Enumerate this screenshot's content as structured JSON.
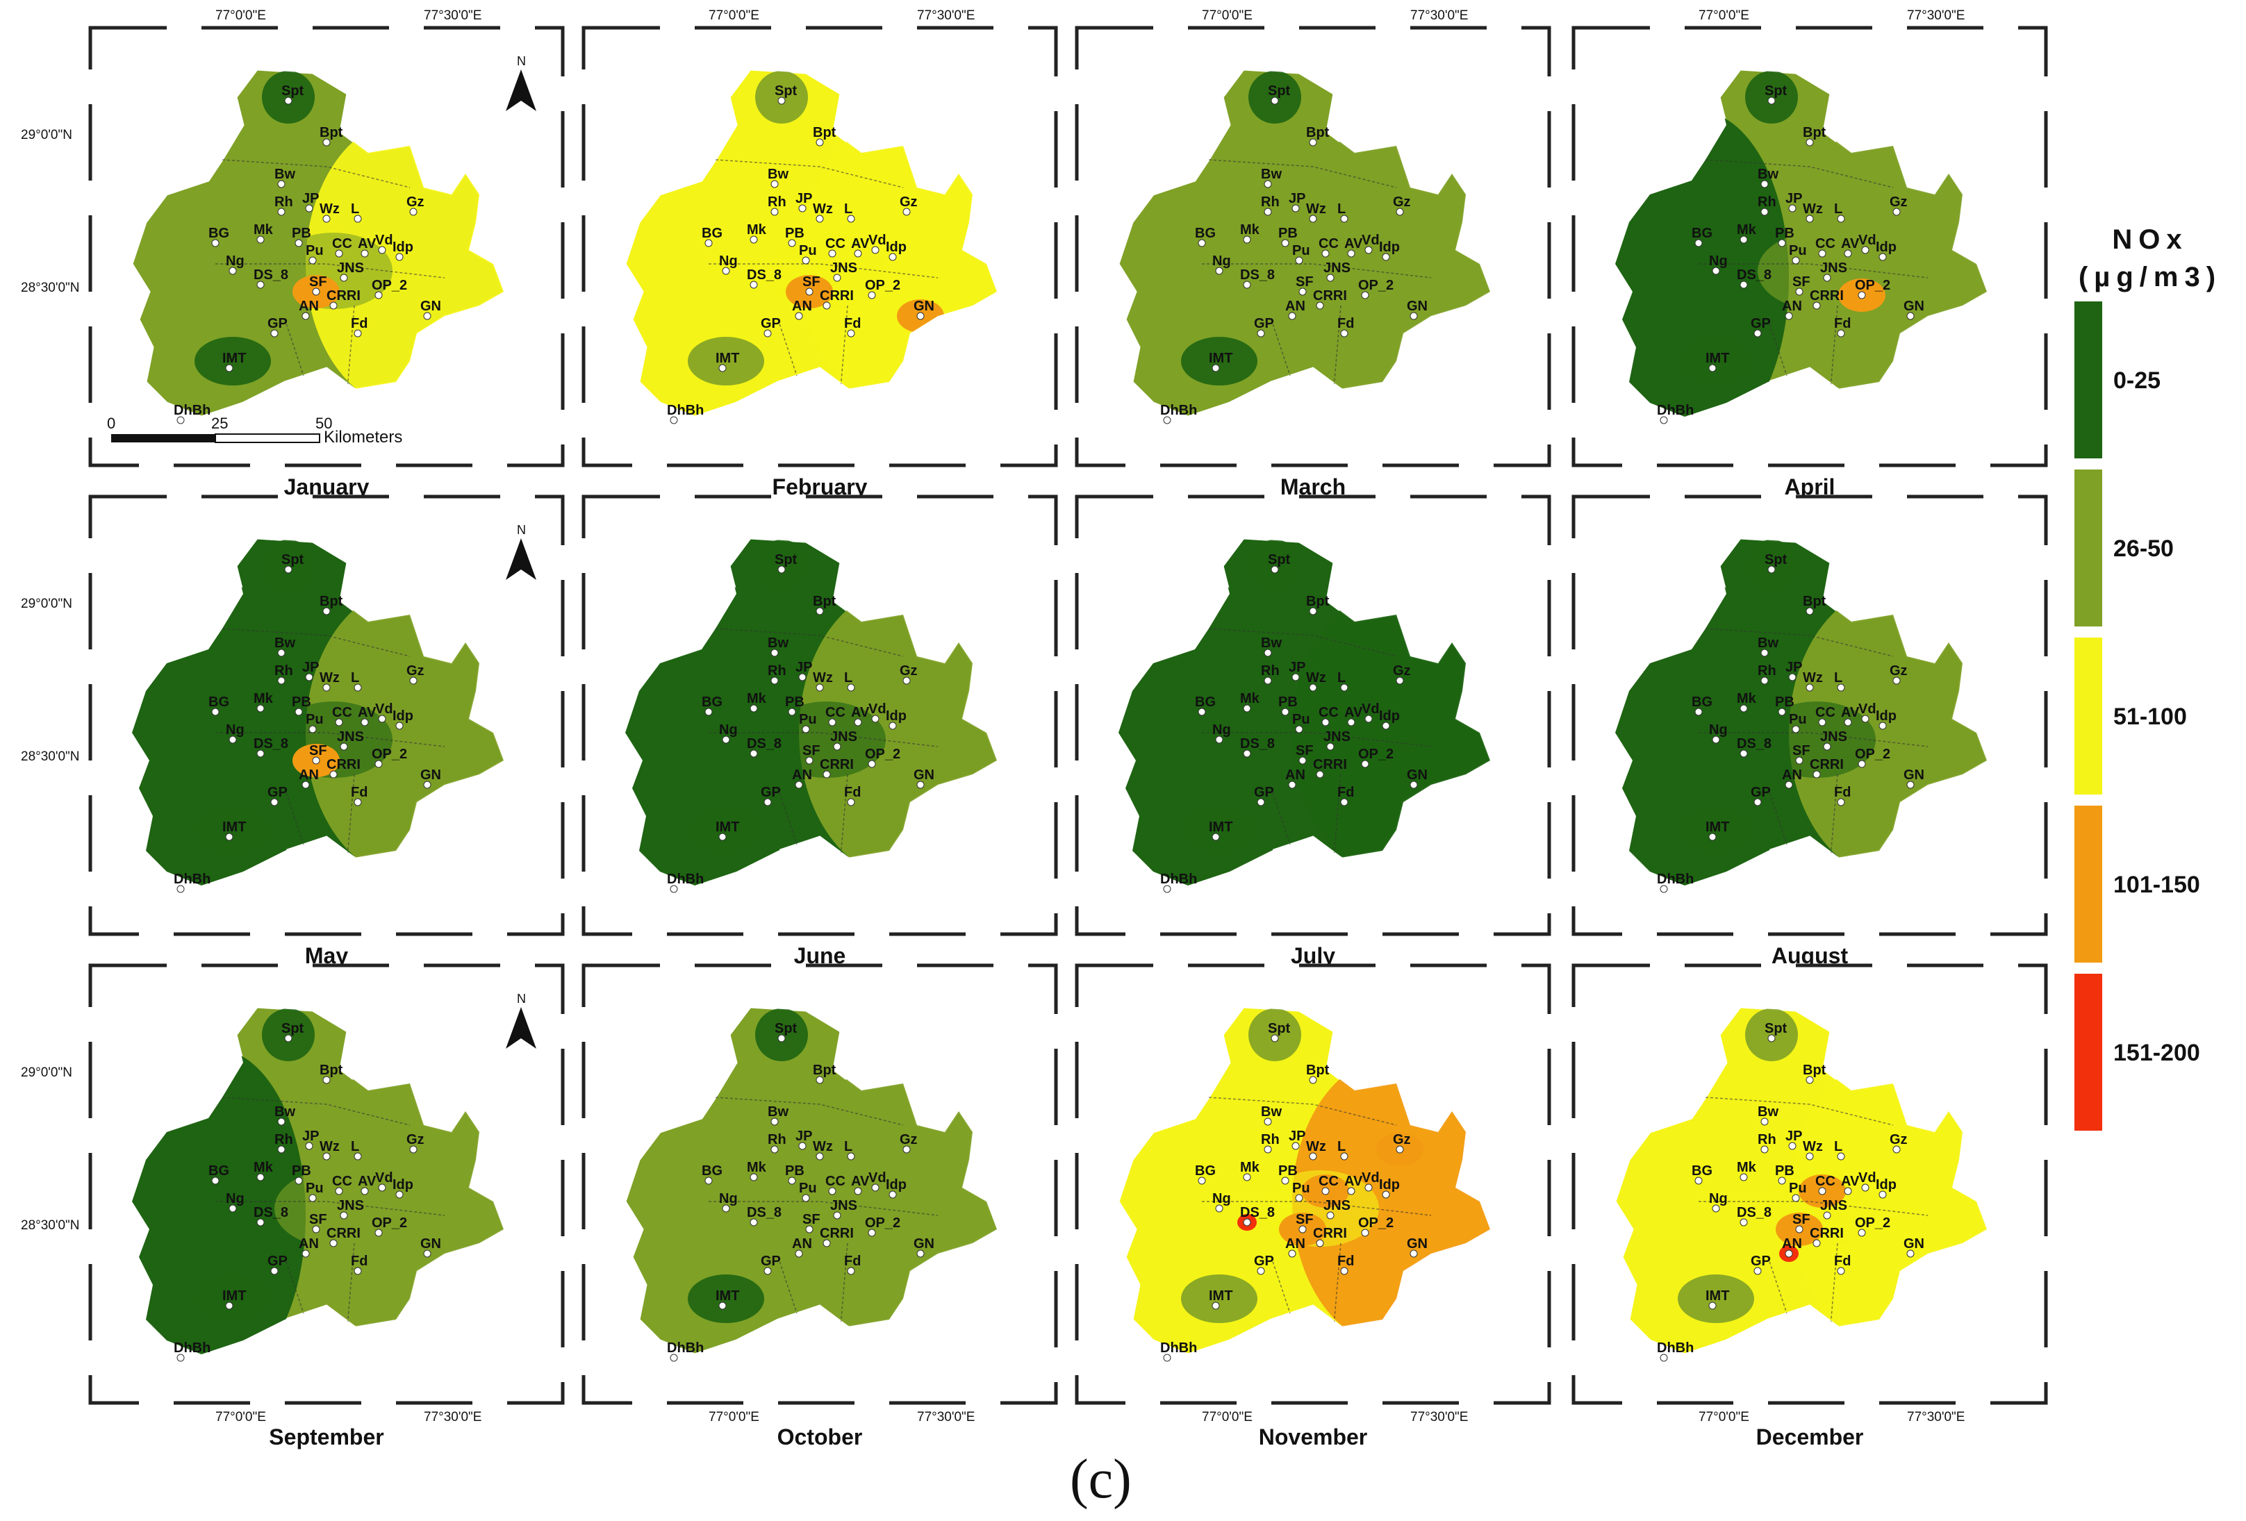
{
  "legend": {
    "title_line1": "NOx",
    "title_line2": "(µg/m3)",
    "classes": [
      {
        "label": "0-25",
        "color": "#1e6412"
      },
      {
        "label": "26-50",
        "color": "#7fa126"
      },
      {
        "label": "51-100",
        "color": "#f4f418"
      },
      {
        "label": "101-150",
        "color": "#f29b12"
      },
      {
        "label": "151-200",
        "color": "#f2300c"
      }
    ]
  },
  "caption": "(c)",
  "coordinates": {
    "lon_west": "77°0'0\"E",
    "lon_east": "77°30'0\"E",
    "lat_north": "29°0'0\"N",
    "lat_south": "28°30'0\"N"
  },
  "scale_bar": {
    "ticks": [
      "0",
      "25",
      "50"
    ],
    "unit": "Kilometers"
  },
  "north_symbol": "N",
  "stations": [
    "Spt",
    "Bpt",
    "Bw",
    "Rh",
    "JP",
    "Wz",
    "L",
    "Gz",
    "BG",
    "Mk",
    "PB",
    "Pu",
    "CC",
    "AV",
    "Vd",
    "Idp",
    "Ng",
    "DS_8",
    "JNS",
    "SF",
    "CRRI",
    "OP_2",
    "AN",
    "GP",
    "Fd",
    "GN",
    "IMT",
    "DhBh"
  ],
  "months": [
    {
      "name": "January",
      "base": "#7fa126",
      "east": "#f4f418",
      "west_dark": false,
      "hot": [
        [
          "SF",
          "#f29b12"
        ]
      ]
    },
    {
      "name": "February",
      "base": "#f4f418",
      "east": "#f4f418",
      "west_dark": false,
      "hot": [
        [
          "SF",
          "#f29b12"
        ],
        [
          "GN",
          "#f29b12"
        ]
      ]
    },
    {
      "name": "March",
      "base": "#7fa126",
      "east": "#7fa126",
      "west_dark": false,
      "hot": []
    },
    {
      "name": "April",
      "base": "#7fa126",
      "east": "#7fa126",
      "west_dark": true,
      "hot": [
        [
          "OP_2",
          "#f29b12"
        ]
      ]
    },
    {
      "name": "May",
      "base": "#1e6412",
      "east": "#7fa126",
      "west_dark": true,
      "hot": [
        [
          "SF",
          "#f29b12"
        ]
      ]
    },
    {
      "name": "June",
      "base": "#1e6412",
      "east": "#7fa126",
      "west_dark": true,
      "hot": []
    },
    {
      "name": "July",
      "base": "#1e6412",
      "east": "#1e6412",
      "west_dark": true,
      "hot": []
    },
    {
      "name": "August",
      "base": "#1e6412",
      "east": "#7fa126",
      "west_dark": true,
      "hot": []
    },
    {
      "name": "September",
      "base": "#7fa126",
      "east": "#7fa126",
      "west_dark": true,
      "hot": []
    },
    {
      "name": "October",
      "base": "#7fa126",
      "east": "#7fa126",
      "west_dark": false,
      "hot": []
    },
    {
      "name": "November",
      "base": "#f4f418",
      "east": "#f29b12",
      "west_dark": false,
      "hot": [
        [
          "SF",
          "#f29b12"
        ],
        [
          "CC",
          "#f29b12"
        ],
        [
          "Gz",
          "#f29b12"
        ],
        [
          "DS_8",
          "#f2300c"
        ]
      ]
    },
    {
      "name": "December",
      "base": "#f4f418",
      "east": "#f4f418",
      "west_dark": false,
      "hot": [
        [
          "CC",
          "#f29b12"
        ],
        [
          "SF",
          "#f29b12"
        ],
        [
          "AN",
          "#f2300c"
        ]
      ]
    }
  ]
}
